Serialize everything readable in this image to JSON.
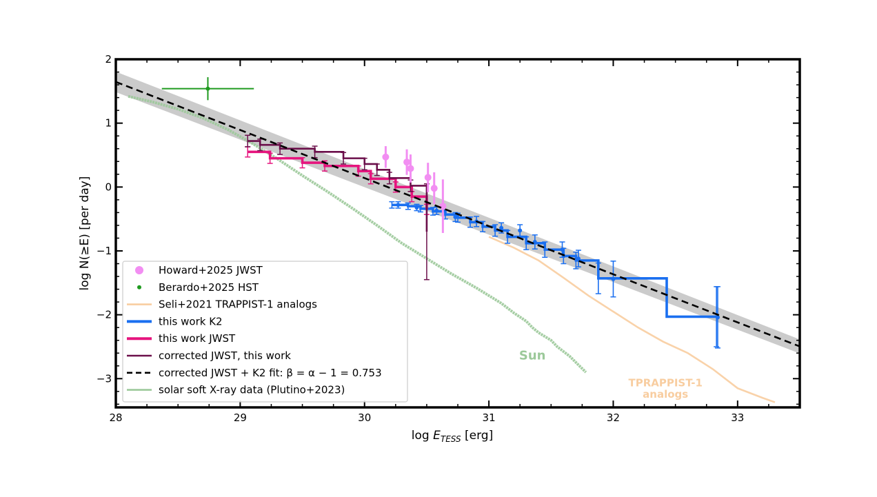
{
  "chart_data": {
    "type": "line",
    "xlabel": "log E",
    "xlabel_sub": "TESS",
    "xlabel_unit": "[erg]",
    "ylabel": "log N(≥E) [per day]",
    "xlim": [
      28,
      33.5
    ],
    "ylim": [
      -3.45,
      2
    ],
    "x_ticks": [
      28,
      29,
      30,
      31,
      32,
      33
    ],
    "y_ticks": [
      -3,
      -2,
      -1,
      0,
      1,
      2
    ],
    "x_tick_labels": [
      "28",
      "29",
      "30",
      "31",
      "32",
      "33"
    ],
    "y_tick_labels": [
      "−3",
      "−2",
      "−1",
      "0",
      "1",
      "2"
    ],
    "fit": {
      "slope": -0.753,
      "intercept": 22.73,
      "x_range": [
        28,
        33.5
      ],
      "band_halfwidth_left": 0.16,
      "band_halfwidth_right": 0.11,
      "color": "#000000",
      "band_color": "#b9b9b9"
    },
    "series": [
      {
        "name": "solar soft X-ray data (Plutino+2023)",
        "kind": "line",
        "color": "#9cc99a",
        "x": [
          28.1,
          28.3,
          28.5,
          28.7,
          28.9,
          29.1,
          29.3,
          29.5,
          29.7,
          29.9,
          30.1,
          30.3,
          30.5,
          30.7,
          30.9,
          31.1,
          31.2,
          31.3,
          31.35,
          31.4,
          31.5,
          31.55,
          31.65,
          31.78
        ],
        "y": [
          1.42,
          1.33,
          1.22,
          1.08,
          0.9,
          0.68,
          0.44,
          0.18,
          -0.07,
          -0.33,
          -0.6,
          -0.88,
          -1.12,
          -1.36,
          -1.58,
          -1.82,
          -1.97,
          -2.1,
          -2.2,
          -2.28,
          -2.4,
          -2.5,
          -2.65,
          -2.9
        ]
      },
      {
        "name": "Seli+2021 TRAPPIST-1 analogs",
        "kind": "line",
        "color": "#f8cda0",
        "x": [
          31.0,
          31.2,
          31.4,
          31.6,
          31.8,
          32.0,
          32.2,
          32.4,
          32.6,
          32.8,
          33.0,
          33.2,
          33.3
        ],
        "y": [
          -0.78,
          -0.95,
          -1.15,
          -1.42,
          -1.7,
          -1.95,
          -2.2,
          -2.42,
          -2.6,
          -2.85,
          -3.15,
          -3.3,
          -3.37
        ]
      },
      {
        "name": "this work K2",
        "kind": "step",
        "color": "#1a6ff0",
        "x": [
          30.22,
          30.35,
          30.45,
          30.55,
          30.65,
          30.75,
          30.85,
          30.95,
          31.05,
          31.15,
          31.3,
          31.45,
          31.6,
          31.7,
          31.88,
          32.43,
          32.83
        ],
        "y": [
          -0.28,
          -0.3,
          -0.34,
          -0.38,
          -0.43,
          -0.48,
          -0.55,
          -0.62,
          -0.68,
          -0.78,
          -0.88,
          -0.98,
          -1.08,
          -1.15,
          -1.43,
          -2.03,
          -2.03
        ],
        "err_y": [
          0.05,
          0.05,
          0.05,
          0.06,
          0.07,
          0.07,
          0.08,
          0.08,
          0.09,
          0.1,
          0.1,
          0.12,
          0.12,
          0.13,
          0.24,
          0.0,
          0.47
        ],
        "err_x": [
          30.27,
          30.42,
          30.58,
          30.73,
          30.9,
          31.1,
          31.25,
          31.37,
          31.59,
          31.72,
          32.0,
          32.84
        ],
        "err_x_y": [
          -0.28,
          -0.32,
          -0.37,
          -0.47,
          -0.54,
          -0.64,
          -0.68,
          -0.86,
          -0.98,
          -1.12,
          -1.44,
          -2.04
        ],
        "err_x_e": [
          0.05,
          0.05,
          0.06,
          0.07,
          0.08,
          0.08,
          0.09,
          0.11,
          0.12,
          0.13,
          0.28,
          0.48
        ]
      },
      {
        "name": "this work JWST",
        "kind": "step",
        "color": "#e6157e",
        "x": [
          29.06,
          29.24,
          29.5,
          29.68,
          29.95,
          30.05,
          30.25,
          30.38,
          30.5
        ],
        "y": [
          0.55,
          0.45,
          0.38,
          0.33,
          0.25,
          0.13,
          0.0,
          -0.15,
          -0.35
        ]
      },
      {
        "name": "corrected JWST, this work",
        "kind": "step",
        "color": "#6b0f4a",
        "x": [
          29.06,
          29.16,
          29.32,
          29.6,
          29.83,
          30.0,
          30.1,
          30.2,
          30.37,
          30.5
        ],
        "y": [
          0.72,
          0.66,
          0.6,
          0.55,
          0.45,
          0.36,
          0.27,
          0.14,
          0.02,
          -0.7
        ]
      },
      {
        "name": "Howard+2025 JWST",
        "kind": "points",
        "color": "#f28ef2",
        "x": [
          30.17,
          30.34,
          30.37,
          30.51,
          30.56,
          30.63
        ],
        "y": [
          0.47,
          0.39,
          0.29,
          0.15,
          -0.02,
          -0.3
        ],
        "err_y": [
          0.17,
          0.2,
          0.22,
          0.23,
          0.25,
          0.42
        ]
      },
      {
        "name": "Berardo+2025 HST",
        "kind": "points",
        "color": "#1f9a1f",
        "x": [
          28.74
        ],
        "y": [
          1.54
        ],
        "err_x": [
          0.37
        ],
        "err_y": [
          0.18
        ]
      }
    ],
    "fit_label": "corrected JWST + K2 fit:  β = α − 1 = 0.753",
    "annotations": [
      {
        "text": "Sun",
        "x": 31.35,
        "y": -2.7,
        "color": "#9cc99a"
      },
      {
        "text": "TPRAPPIST-1",
        "x": 32.42,
        "y": -3.12,
        "color": "#f8cda0"
      },
      {
        "text": "analogs",
        "x": 32.42,
        "y": -3.3,
        "color": "#f8cda0"
      }
    ],
    "legend_position": "lower-left",
    "legend": [
      {
        "label": "Howard+2025 JWST",
        "symbol": "big-dot",
        "color": "#f28ef2"
      },
      {
        "label": "Berardo+2025 HST",
        "symbol": "small-dot",
        "color": "#1f9a1f"
      },
      {
        "label": "Seli+2021 TRAPPIST-1 analogs",
        "symbol": "line",
        "color": "#f8cda0"
      },
      {
        "label": "this work K2",
        "symbol": "thick-line",
        "color": "#1a6ff0"
      },
      {
        "label": "this work JWST",
        "symbol": "thick-line",
        "color": "#e6157e"
      },
      {
        "label": "corrected JWST, this work",
        "symbol": "line",
        "color": "#6b0f4a"
      },
      {
        "label": "corrected JWST + K2 fit:  β = α − 1 = 0.753",
        "symbol": "dashed",
        "color": "#000000"
      },
      {
        "label": "solar soft X-ray data (Plutino+2023)",
        "symbol": "line",
        "color": "#9cc99a"
      }
    ]
  }
}
